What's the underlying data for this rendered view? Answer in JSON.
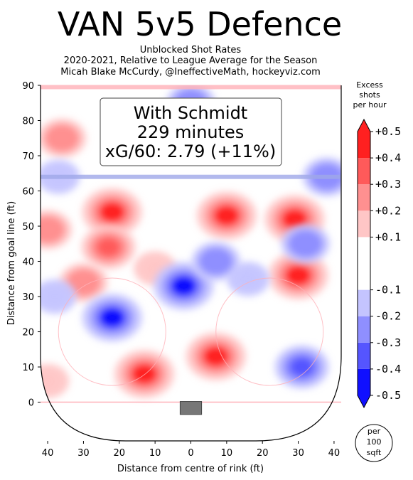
{
  "header": {
    "title": "VAN 5v5 Defence",
    "subtitle_lines": [
      "Unblocked Shot Rates",
      "2020-2021, Relative to League Average for the Season",
      "Micah Blake McCurdy, @IneffectiveMath, hockeyviz.com"
    ]
  },
  "annotation": {
    "lines": [
      "With Schmidt",
      "229 minutes",
      "xG/60: 2.79 (+11%)"
    ]
  },
  "colorbar": {
    "title_lines": [
      "Excess",
      "shots",
      "per hour"
    ],
    "unit_lines": [
      "per",
      "100",
      "sqft"
    ]
  },
  "colors": {
    "high": "#ff0000",
    "low": "#0000ff",
    "line_red": "#ffb0b8",
    "line_blue": "#9fa8e8"
  },
  "chart_data": {
    "type": "heatmap",
    "title": "VAN 5v5 Defence",
    "xlabel": "Distance from centre of rink (ft)",
    "ylabel": "Distance from goal line (ft)",
    "xlim": [
      -42,
      42
    ],
    "ylim": [
      -11,
      90
    ],
    "x_ticks": [
      -40,
      -30,
      -20,
      -10,
      0,
      10,
      20,
      30,
      40
    ],
    "x_tick_labels": [
      "40",
      "30",
      "20",
      "10",
      "0",
      "10",
      "20",
      "30",
      "40"
    ],
    "y_ticks": [
      0,
      10,
      20,
      30,
      40,
      50,
      60,
      70,
      80,
      90
    ],
    "y_tick_labels": [
      "0",
      "10",
      "20",
      "30",
      "40",
      "50",
      "60",
      "70",
      "80",
      "90"
    ],
    "colorbar_levels": [
      -0.5,
      -0.4,
      -0.3,
      -0.2,
      -0.1,
      0.1,
      0.2,
      0.3,
      0.4,
      0.5
    ],
    "colorbar_labels": [
      "-0.5",
      "-0.4",
      "-0.3",
      "-0.2",
      "-0.1",
      "+0.1",
      "+0.2",
      "+0.3",
      "+0.4",
      "+0.5"
    ],
    "colorbar_colors": [
      "#1010ff",
      "#5555ff",
      "#8f8fff",
      "#c4c4ff",
      "#ffffff",
      "#ffc6c6",
      "#ff9090",
      "#ff5a5a",
      "#ff2020"
    ],
    "hotspots": [
      {
        "x": -36,
        "y": 75,
        "level": 0.3
      },
      {
        "x": -40,
        "y": 49,
        "level": 0.3
      },
      {
        "x": -22,
        "y": 54,
        "level": 0.5
      },
      {
        "x": -23,
        "y": 44,
        "level": 0.4
      },
      {
        "x": -30,
        "y": 34,
        "level": 0.3
      },
      {
        "x": -10,
        "y": 38,
        "level": 0.2
      },
      {
        "x": -13,
        "y": 8,
        "level": 0.5
      },
      {
        "x": 7,
        "y": 13,
        "level": 0.5
      },
      {
        "x": 10,
        "y": 53,
        "level": 0.5
      },
      {
        "x": 29,
        "y": 52,
        "level": 0.5
      },
      {
        "x": 30,
        "y": 36,
        "level": 0.5
      },
      {
        "x": -40,
        "y": 6,
        "level": 0.2
      },
      {
        "x": -22,
        "y": 24,
        "level": -0.5
      },
      {
        "x": -2,
        "y": 33,
        "level": -0.5
      },
      {
        "x": 32,
        "y": 45,
        "level": -0.3
      },
      {
        "x": 31,
        "y": 10,
        "level": -0.4
      },
      {
        "x": -37,
        "y": 64,
        "level": -0.2
      },
      {
        "x": 0,
        "y": 85,
        "level": -0.3
      },
      {
        "x": 38,
        "y": 64,
        "level": -0.3
      },
      {
        "x": 16,
        "y": 35,
        "level": -0.2
      },
      {
        "x": 7,
        "y": 40,
        "level": -0.3
      },
      {
        "x": -38,
        "y": 30,
        "level": -0.2
      }
    ]
  }
}
